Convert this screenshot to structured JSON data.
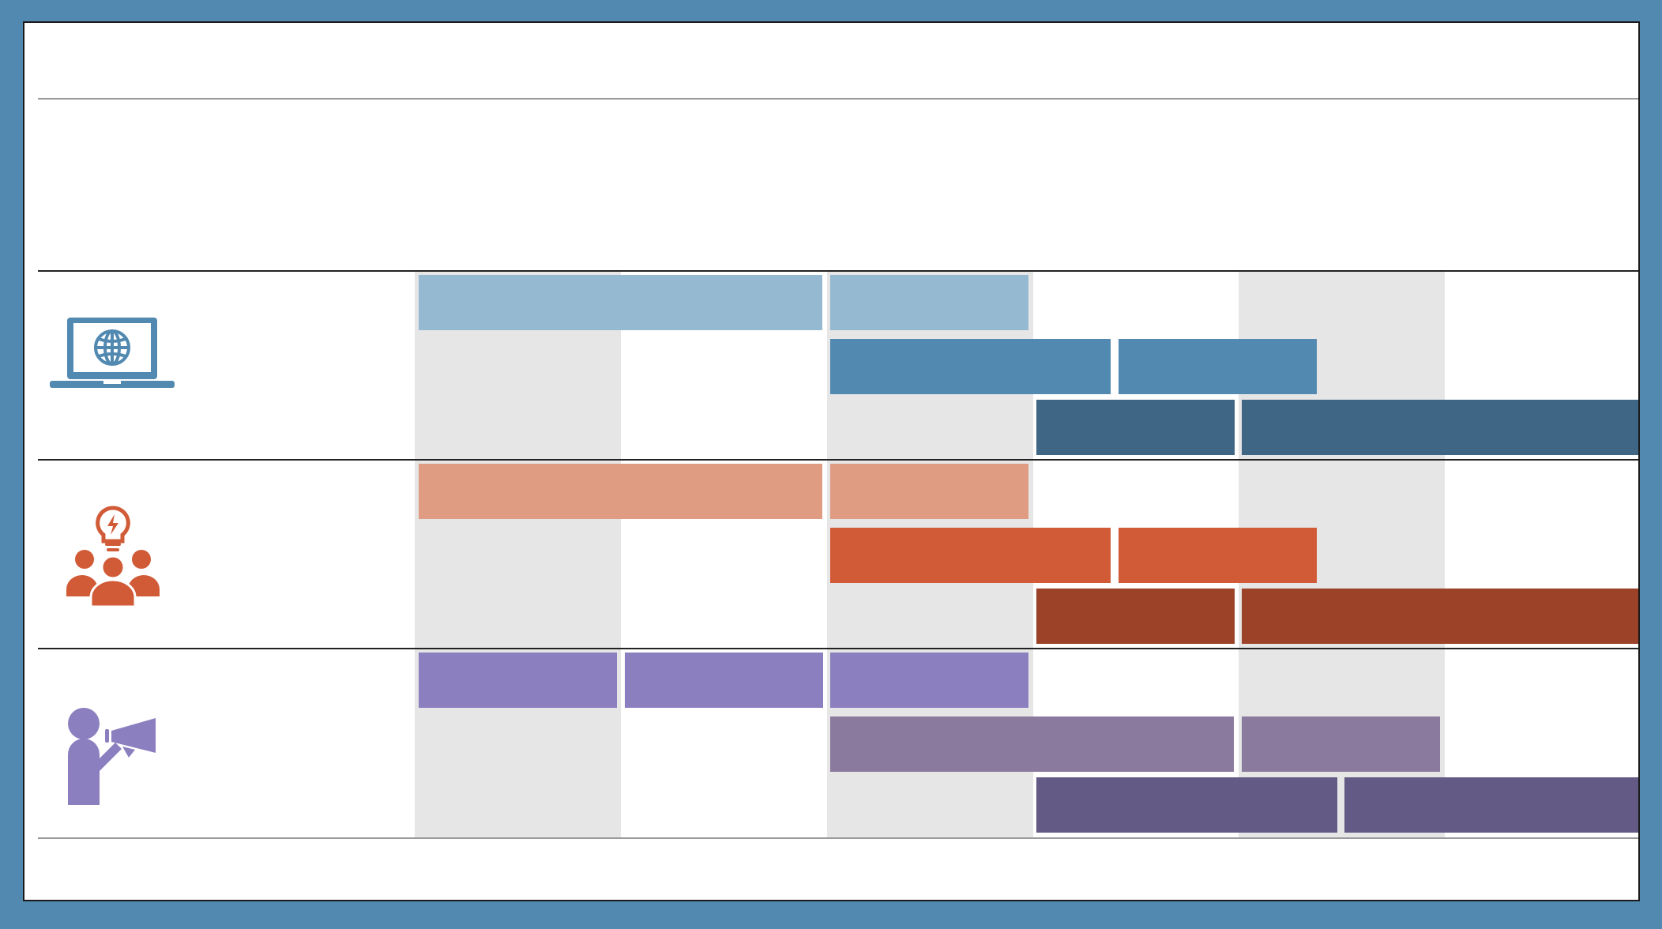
{
  "colors": {
    "frame": "#5289b1",
    "background": "#ffffff",
    "column_band": "#e6e6e6",
    "web_light": "#95b9d1",
    "web_mid": "#5289b1",
    "web_dark": "#3f6684",
    "team_light": "#df9c82",
    "team_mid": "#d05b36",
    "team_dark": "#9c4228",
    "marketing_light": "#8b7fbf",
    "marketing_mid": "#8a7a9d",
    "marketing_dark": "#645a86"
  },
  "rows": [
    {
      "name": "web",
      "icon": "laptop-globe-icon",
      "bars": [
        {
          "lane": 0,
          "start": 0,
          "end": 2,
          "tone": "light"
        },
        {
          "lane": 0,
          "start": 2,
          "end": 3,
          "tone": "light"
        },
        {
          "lane": 1,
          "start": 2,
          "end": 3.4,
          "tone": "mid"
        },
        {
          "lane": 1,
          "start": 3.4,
          "end": 4.4,
          "tone": "mid"
        },
        {
          "lane": 2,
          "start": 3,
          "end": 4,
          "tone": "dark"
        },
        {
          "lane": 2,
          "start": 4,
          "end": 6,
          "tone": "dark"
        }
      ]
    },
    {
      "name": "team",
      "icon": "team-lightbulb-icon",
      "bars": [
        {
          "lane": 0,
          "start": 0,
          "end": 2,
          "tone": "light"
        },
        {
          "lane": 0,
          "start": 2,
          "end": 3,
          "tone": "light"
        },
        {
          "lane": 1,
          "start": 2,
          "end": 3.4,
          "tone": "mid"
        },
        {
          "lane": 1,
          "start": 3.4,
          "end": 4.4,
          "tone": "mid"
        },
        {
          "lane": 2,
          "start": 3,
          "end": 4,
          "tone": "dark"
        },
        {
          "lane": 2,
          "start": 4,
          "end": 6,
          "tone": "dark"
        }
      ]
    },
    {
      "name": "marketing",
      "icon": "megaphone-person-icon",
      "bars": [
        {
          "lane": 0,
          "start": 0,
          "end": 1,
          "tone": "light"
        },
        {
          "lane": 0,
          "start": 1,
          "end": 2,
          "tone": "light"
        },
        {
          "lane": 0,
          "start": 2,
          "end": 3,
          "tone": "light"
        },
        {
          "lane": 1,
          "start": 2,
          "end": 4,
          "tone": "mid"
        },
        {
          "lane": 1,
          "start": 4,
          "end": 5,
          "tone": "mid"
        },
        {
          "lane": 2,
          "start": 3,
          "end": 4.5,
          "tone": "dark"
        },
        {
          "lane": 2,
          "start": 4.5,
          "end": 6,
          "tone": "dark"
        }
      ]
    }
  ]
}
